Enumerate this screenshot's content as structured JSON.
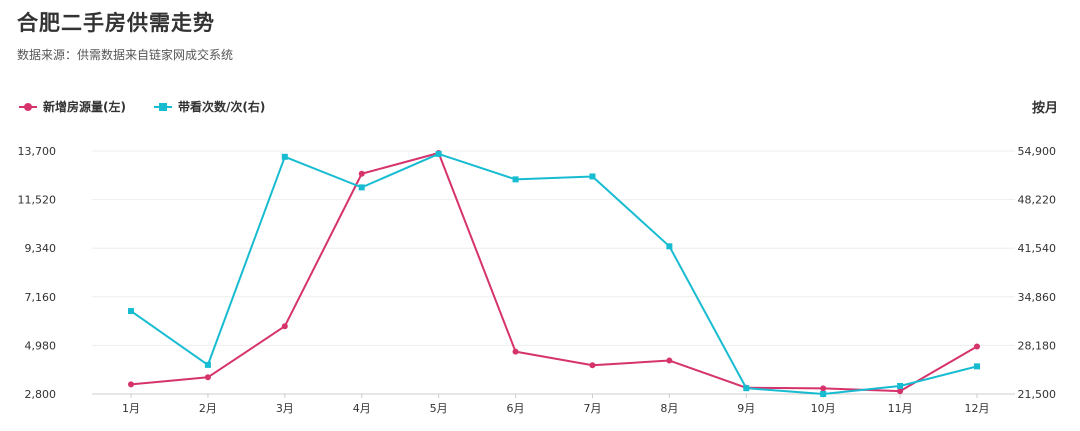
{
  "title": "合肥二手房供需走势",
  "subtitle": "数据来源：供需数据来自链家网成交系统",
  "period_label": "按月",
  "legend": [
    {
      "label": "新增房源量(左)",
      "color": "#d6336c",
      "marker": "circle"
    },
    {
      "label": "带看次数/次(右)",
      "color": "#17bcd1",
      "marker": "square"
    }
  ],
  "chart_data": {
    "type": "line",
    "categories": [
      "1月",
      "2月",
      "3月",
      "4月",
      "5月",
      "6月",
      "7月",
      "8月",
      "9月",
      "10月",
      "11月",
      "12月"
    ],
    "y_left": {
      "ticks": [
        "2,800",
        "4,980",
        "7,160",
        "9,340",
        "11,520",
        "13,700"
      ],
      "range": [
        2800,
        13700
      ]
    },
    "y_right": {
      "ticks": [
        "21,500",
        "28,180",
        "34,860",
        "41,540",
        "48,220",
        "54,900"
      ],
      "range": [
        21500,
        54900
      ]
    },
    "grid": true,
    "series": [
      {
        "name": "新增房源量(左)",
        "axis": "left",
        "color": "#d6336c",
        "marker": "circle",
        "values": [
          3230,
          3550,
          5840,
          12680,
          13610,
          4700,
          4090,
          4300,
          3080,
          3050,
          2930,
          4930
        ]
      },
      {
        "name": "带看次数/次(右)",
        "axis": "right",
        "color": "#17bcd1",
        "marker": "square",
        "values": [
          32900,
          25500,
          54100,
          49900,
          54500,
          51000,
          51400,
          41800,
          22300,
          21500,
          22600,
          25300
        ]
      }
    ]
  }
}
